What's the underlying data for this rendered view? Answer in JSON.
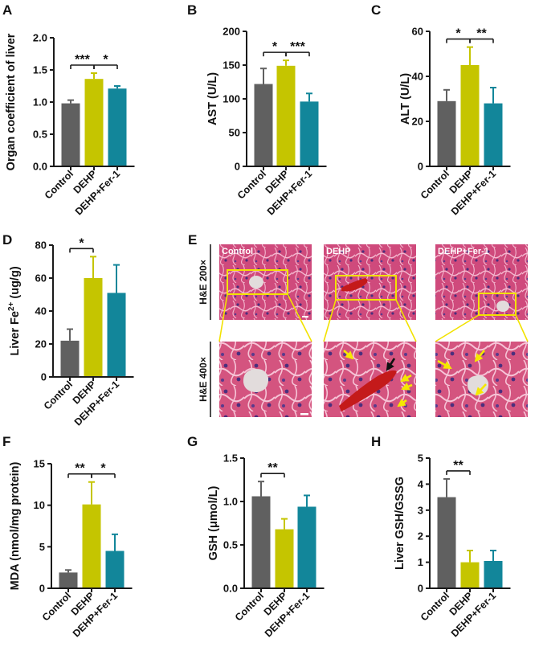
{
  "colors": {
    "control": "#606060",
    "dehp": "#c5c500",
    "fer1": "#12869a",
    "axis": "#1a1a1a",
    "micro_label_bg": "#e8e8e8",
    "box": "#f2e200",
    "arrow_yellow": "#f5e800",
    "arrow_black": "#111111"
  },
  "chart_data": [
    {
      "id": "A",
      "panel_label": "A",
      "type": "bar",
      "categories": [
        "Control",
        "DEHP",
        "DEHP+Fer-1"
      ],
      "values": [
        0.98,
        1.36,
        1.21
      ],
      "errors": [
        0.05,
        0.09,
        0.04
      ],
      "ylabel": "Organ coefficient of liver",
      "ylim": [
        0,
        2.0
      ],
      "yticks": [
        0.0,
        0.5,
        1.0,
        1.5,
        2.0
      ],
      "ytick_labels": [
        "0.0",
        "0.5",
        "1.0",
        "1.5",
        "2.0"
      ],
      "significance": [
        {
          "from": 0,
          "to": 1,
          "label": "***"
        },
        {
          "from": 1,
          "to": 2,
          "label": "*"
        }
      ]
    },
    {
      "id": "B",
      "panel_label": "B",
      "type": "bar",
      "categories": [
        "Control",
        "DEHP",
        "DEHP+Fer-1"
      ],
      "values": [
        122,
        149,
        96
      ],
      "errors": [
        23,
        8,
        12
      ],
      "ylabel": "AST (U/L)",
      "ylim": [
        0,
        200
      ],
      "yticks": [
        0,
        50,
        100,
        150,
        200
      ],
      "ytick_labels": [
        "0",
        "50",
        "100",
        "150",
        "200"
      ],
      "significance": [
        {
          "from": 0,
          "to": 1,
          "label": "*"
        },
        {
          "from": 1,
          "to": 2,
          "label": "***"
        }
      ]
    },
    {
      "id": "C",
      "panel_label": "C",
      "type": "bar",
      "categories": [
        "Control",
        "DEHP",
        "DEHP+Fer-1"
      ],
      "values": [
        29,
        45,
        28
      ],
      "errors": [
        5,
        8,
        7
      ],
      "ylabel": "ALT (U/L)",
      "ylim": [
        0,
        60
      ],
      "yticks": [
        0,
        20,
        40,
        60
      ],
      "ytick_labels": [
        "0",
        "20",
        "40",
        "60"
      ],
      "significance": [
        {
          "from": 0,
          "to": 1,
          "label": "*"
        },
        {
          "from": 1,
          "to": 2,
          "label": "**"
        }
      ]
    },
    {
      "id": "D",
      "panel_label": "D",
      "type": "bar",
      "categories": [
        "Control",
        "DEHP",
        "DEHP+Fer-1"
      ],
      "values": [
        22,
        60,
        51
      ],
      "errors": [
        7,
        13,
        17
      ],
      "ylabel": "Liver Fe",
      "ylabel_sup": "2+",
      "ylabel_tail": " (ug/g)",
      "ylim": [
        0,
        80
      ],
      "yticks": [
        0,
        20,
        40,
        60,
        80
      ],
      "ytick_labels": [
        "0",
        "20",
        "40",
        "60",
        "80"
      ],
      "significance": [
        {
          "from": 0,
          "to": 1,
          "label": "*"
        }
      ]
    },
    {
      "id": "F",
      "panel_label": "F",
      "type": "bar",
      "categories": [
        "Control",
        "DEHP",
        "DEHP+Fer-1"
      ],
      "values": [
        1.9,
        10.1,
        4.5
      ],
      "errors": [
        0.3,
        2.7,
        2.0
      ],
      "ylabel": "MDA (nmol/mg protein)",
      "ylim": [
        0,
        15
      ],
      "yticks": [
        0,
        5,
        10,
        15
      ],
      "ytick_labels": [
        "0",
        "5",
        "10",
        "15"
      ],
      "significance": [
        {
          "from": 0,
          "to": 1,
          "label": "**"
        },
        {
          "from": 1,
          "to": 2,
          "label": "*"
        }
      ]
    },
    {
      "id": "G",
      "panel_label": "G",
      "type": "bar",
      "categories": [
        "Control",
        "DEHP",
        "DEHP+Fer-1"
      ],
      "values": [
        1.06,
        0.68,
        0.94
      ],
      "errors": [
        0.17,
        0.12,
        0.13
      ],
      "ylabel": "GSH (μmol/L)",
      "ylim": [
        0,
        1.5
      ],
      "yticks": [
        0.0,
        0.5,
        1.0,
        1.5
      ],
      "ytick_labels": [
        "0.0",
        "0.5",
        "1.0",
        "1.5"
      ],
      "significance": [
        {
          "from": 0,
          "to": 1,
          "label": "**"
        }
      ]
    },
    {
      "id": "H",
      "panel_label": "H",
      "type": "bar",
      "categories": [
        "Control",
        "DEHP",
        "DEHP+Fer-1"
      ],
      "values": [
        3.5,
        1.0,
        1.05
      ],
      "errors": [
        0.7,
        0.45,
        0.4
      ],
      "ylabel": "Liver GSH/GSSG",
      "ylim": [
        0,
        5
      ],
      "yticks": [
        0,
        1,
        2,
        3,
        4,
        5
      ],
      "ytick_labels": [
        "0",
        "1",
        "2",
        "3",
        "4",
        "5"
      ],
      "significance": [
        {
          "from": 0,
          "to": 1,
          "label": "**"
        }
      ]
    }
  ],
  "micrograph": {
    "panel_label": "E",
    "row_labels": [
      "H&E 200×",
      "H&E 400×"
    ],
    "column_labels": [
      "Control",
      "DEHP",
      "DEHP+Fer-1"
    ],
    "arrow_counts": {
      "dehp_yellow": 4,
      "dehp_black": 1,
      "fer1_yellow": 3
    }
  }
}
